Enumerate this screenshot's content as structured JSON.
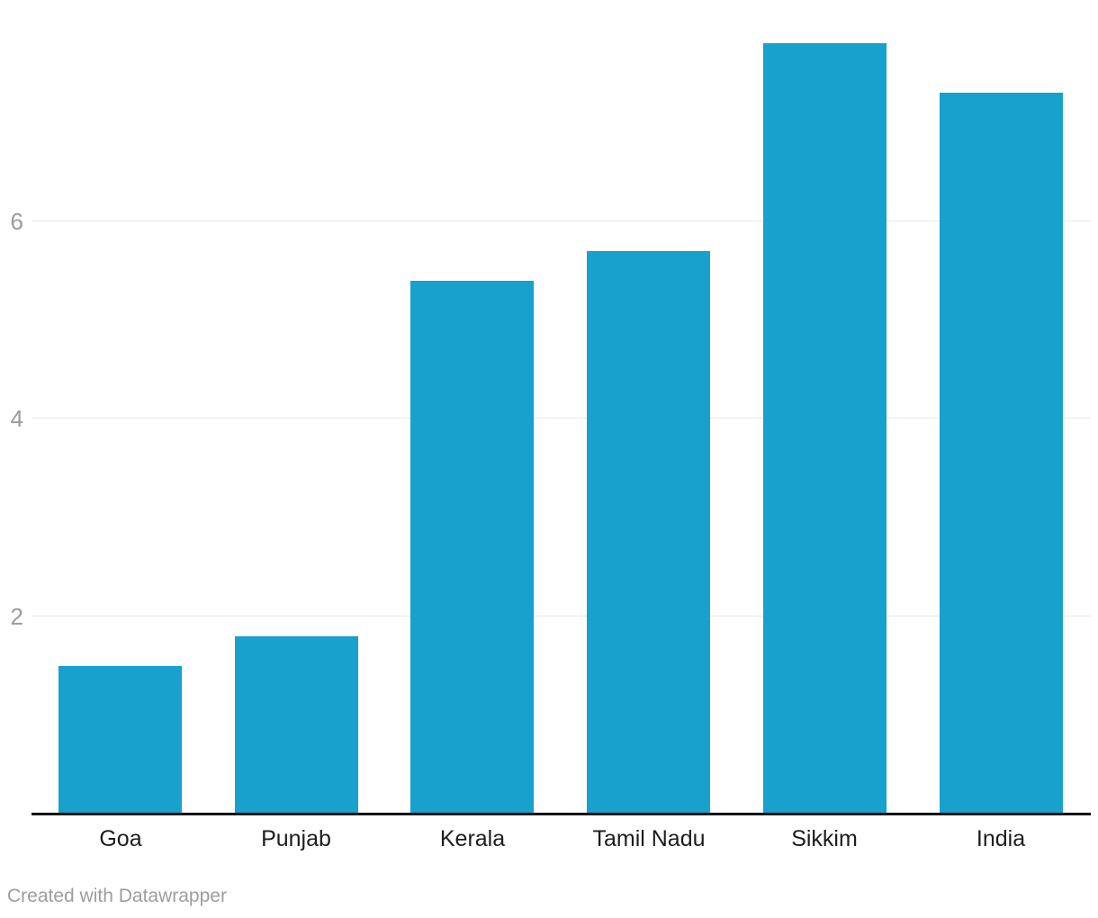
{
  "chart_data": {
    "type": "bar",
    "categories": [
      "Goa",
      "Punjab",
      "Kerala",
      "Tamil Nadu",
      "Sikkim",
      "India"
    ],
    "values": [
      1.5,
      1.8,
      5.4,
      5.7,
      7.8,
      7.3
    ],
    "title": "",
    "xlabel": "",
    "ylabel": "",
    "ylim": [
      0,
      8.25
    ],
    "y_ticks": [
      2,
      4,
      6
    ],
    "grid": "horizontal-only",
    "legend": "none",
    "bar_color": "#18a1cd",
    "gridline_color": "#e8e8e8",
    "axis_line_color": "#141414",
    "y_tick_label_color": "#9b9b9b",
    "category_label_color": "#1d1d1d"
  },
  "footer": {
    "attribution": "Created with Datawrapper",
    "color": "#9d9d9d"
  }
}
